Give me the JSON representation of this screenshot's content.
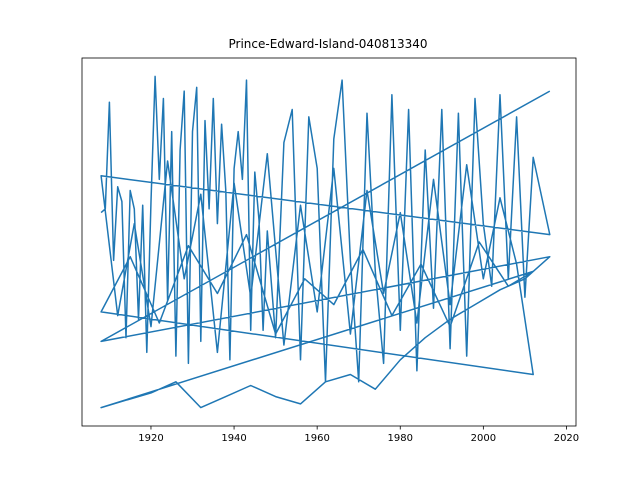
{
  "chart_data": {
    "type": "line",
    "title": "Prince-Edward-Island-040813340",
    "x": [
      1908,
      1909,
      1910,
      1911,
      1912,
      1913,
      1914,
      1915,
      1916,
      1917,
      1918,
      1919,
      1920,
      1921,
      1922,
      1923,
      1924,
      1925,
      1926,
      1927,
      1928,
      1929,
      1930,
      1931,
      1932,
      1933,
      1934,
      1935,
      1936,
      1937,
      1938,
      1939,
      1940,
      1941,
      1942,
      1943,
      1944,
      1945,
      1946,
      1947,
      1948,
      1950,
      1952,
      1954,
      1956,
      1958,
      1960,
      1962,
      1964,
      1966,
      1968,
      1970,
      1972,
      1974,
      1976,
      1978,
      1980,
      1982,
      1984,
      1986,
      1988,
      1990,
      1992,
      1994,
      1996,
      1998,
      2000,
      2002,
      2004,
      2006,
      2008,
      2010,
      2012,
      2016,
      1908,
      1912,
      1916,
      1920,
      1924,
      1928,
      1932,
      1936,
      1940,
      1944,
      1948,
      1952,
      1956,
      1960,
      1964,
      1968,
      1972,
      1976,
      1980,
      1984,
      1988,
      1992,
      1996,
      2000,
      2004,
      2008,
      2012,
      1908,
      1915,
      1922,
      1929,
      1936,
      1943,
      1950,
      1957,
      1964,
      1971,
      1978,
      1985,
      1992,
      1999,
      2006,
      2012,
      1908,
      1914,
      1920,
      1926,
      1932,
      1938,
      1944,
      1950,
      1956,
      1962,
      1968,
      1974,
      1980,
      1986,
      1992,
      1998,
      2004,
      2010,
      2016,
      1908,
      2016
    ],
    "series": [
      {
        "color": "#1f77b4",
        "values": [
          58,
          59,
          88,
          45,
          65,
          61,
          24,
          64,
          59,
          29,
          60,
          20,
          61,
          95,
          67,
          89,
          34,
          80,
          19,
          75,
          91,
          17,
          80,
          92,
          23,
          83,
          59,
          89,
          55,
          82,
          64,
          18,
          70,
          80,
          67,
          94,
          26,
          69,
          56,
          26,
          53,
          24,
          77,
          86,
          18,
          84,
          70,
          12,
          78,
          94,
          45,
          12,
          85,
          42,
          17,
          90,
          26,
          86,
          15,
          75,
          32,
          86,
          21,
          85,
          19,
          89,
          55,
          38,
          90,
          40,
          84,
          35,
          73,
          52,
          68,
          30,
          55,
          27,
          72,
          40,
          63,
          20,
          66,
          35,
          74,
          22,
          60,
          31,
          70,
          25,
          64,
          36,
          58,
          28,
          67,
          33,
          71,
          40,
          62,
          44,
          14,
          31,
          46,
          28,
          49,
          36,
          52,
          25,
          40,
          33,
          48,
          30,
          44,
          27,
          50,
          38,
          42,
          5,
          7,
          9,
          12,
          5,
          8,
          11,
          8,
          6,
          12,
          14,
          10,
          18,
          24,
          29,
          33,
          37,
          40,
          46,
          23,
          91
        ]
      }
    ],
    "xlim": [
      1903.4,
      2022.3
    ],
    "xticks": [
      1920,
      1940,
      1960,
      1980,
      2000,
      2020
    ],
    "ylim": [
      0,
      100
    ]
  }
}
